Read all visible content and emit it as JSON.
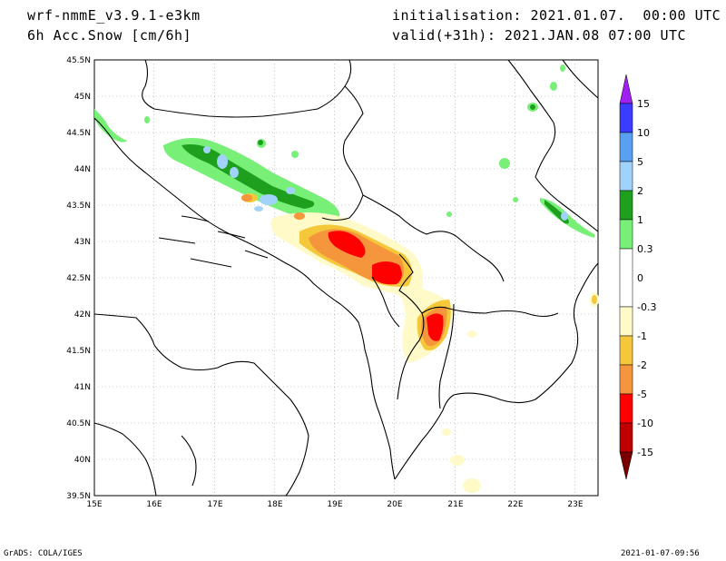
{
  "header": {
    "model": "wrf-nmmE_v3.9.1-e3km",
    "field": "6h Acc.Snow [cm/6h]",
    "init": "initialisation: 2021.01.07.  00:00 UTC",
    "valid": "valid(+31h): 2021.JAN.08 07:00 UTC"
  },
  "footer": {
    "credit": "GrADS: COLA/IGES",
    "timestamp": "2021-01-07-09:56"
  },
  "map": {
    "lon_ticks": [
      "15E",
      "16E",
      "17E",
      "18E",
      "19E",
      "20E",
      "21E",
      "22E",
      "23E"
    ],
    "lat_ticks": [
      "45.5N",
      "45N",
      "44.5N",
      "44N",
      "43.5N",
      "43N",
      "42.5N",
      "42N",
      "41.5N",
      "41N",
      "40.5N",
      "40N",
      "39.5N"
    ]
  },
  "colorbar": {
    "labels": [
      "15",
      "10",
      "5",
      "2",
      "1",
      "0.3",
      "0",
      "-0.3",
      "-1",
      "-2",
      "-5",
      "-10",
      "-15"
    ],
    "colors": {
      "top_arrow": "#a020f0",
      "c15": "#3c3cff",
      "c10": "#5aa0f0",
      "c5": "#a0d2fa",
      "c2": "#1ea01e",
      "c1": "#78f078",
      "c03": "#ffffff",
      "cm03": "#fffac8",
      "cm1": "#f5c83c",
      "cm2": "#f5963c",
      "cm5": "#ff0000",
      "cm10": "#c00000",
      "bottom_arrow": "#780000"
    }
  }
}
